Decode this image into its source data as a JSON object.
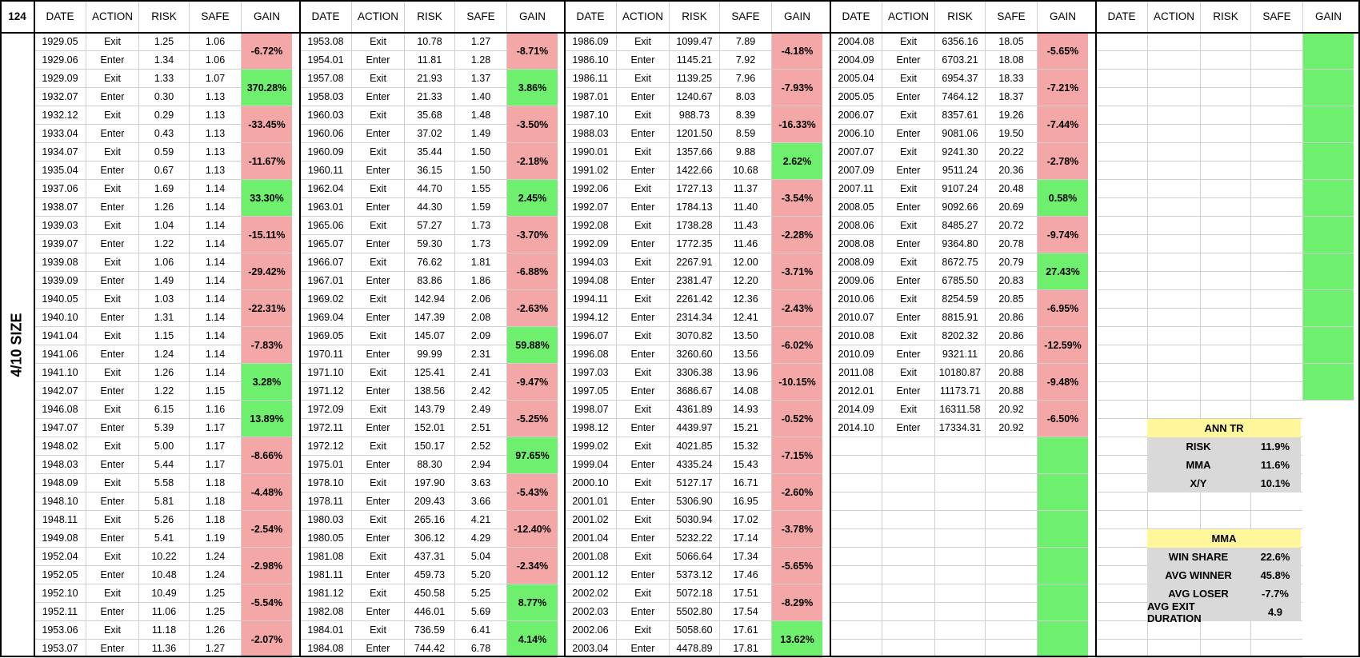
{
  "corner_label": "124",
  "side_label": "4/10 SIZE",
  "headers": [
    "DATE",
    "ACTION",
    "RISK",
    "SAFE",
    "GAIN"
  ],
  "blocks": [
    {
      "rows": [
        [
          "1929.05",
          "Exit",
          "1.25",
          "1.06"
        ],
        [
          "1929.06",
          "Enter",
          "1.34",
          "1.06"
        ],
        [
          "1929.09",
          "Exit",
          "1.33",
          "1.07"
        ],
        [
          "1932.07",
          "Enter",
          "0.30",
          "1.13"
        ],
        [
          "1932.12",
          "Exit",
          "0.29",
          "1.13"
        ],
        [
          "1933.04",
          "Enter",
          "0.43",
          "1.13"
        ],
        [
          "1934.07",
          "Exit",
          "0.59",
          "1.13"
        ],
        [
          "1935.04",
          "Enter",
          "0.67",
          "1.13"
        ],
        [
          "1937.06",
          "Exit",
          "1.69",
          "1.14"
        ],
        [
          "1938.07",
          "Enter",
          "1.26",
          "1.14"
        ],
        [
          "1939.03",
          "Exit",
          "1.04",
          "1.14"
        ],
        [
          "1939.07",
          "Enter",
          "1.22",
          "1.14"
        ],
        [
          "1939.08",
          "Exit",
          "1.06",
          "1.14"
        ],
        [
          "1939.09",
          "Enter",
          "1.49",
          "1.14"
        ],
        [
          "1940.05",
          "Exit",
          "1.03",
          "1.14"
        ],
        [
          "1940.10",
          "Enter",
          "1.31",
          "1.14"
        ],
        [
          "1941.04",
          "Exit",
          "1.15",
          "1.14"
        ],
        [
          "1941.06",
          "Enter",
          "1.24",
          "1.14"
        ],
        [
          "1941.10",
          "Exit",
          "1.26",
          "1.14"
        ],
        [
          "1942.07",
          "Enter",
          "1.22",
          "1.15"
        ],
        [
          "1946.08",
          "Exit",
          "6.15",
          "1.16"
        ],
        [
          "1947.07",
          "Enter",
          "5.39",
          "1.17"
        ],
        [
          "1948.02",
          "Exit",
          "5.00",
          "1.17"
        ],
        [
          "1948.03",
          "Enter",
          "5.44",
          "1.17"
        ],
        [
          "1948.09",
          "Exit",
          "5.58",
          "1.18"
        ],
        [
          "1948.10",
          "Enter",
          "5.81",
          "1.18"
        ],
        [
          "1948.11",
          "Exit",
          "5.26",
          "1.18"
        ],
        [
          "1949.08",
          "Enter",
          "5.41",
          "1.19"
        ],
        [
          "1952.04",
          "Exit",
          "10.22",
          "1.24"
        ],
        [
          "1952.05",
          "Enter",
          "10.48",
          "1.24"
        ],
        [
          "1952.10",
          "Exit",
          "10.49",
          "1.25"
        ],
        [
          "1952.11",
          "Enter",
          "11.06",
          "1.25"
        ],
        [
          "1953.06",
          "Exit",
          "11.18",
          "1.26"
        ],
        [
          "1953.07",
          "Enter",
          "11.36",
          "1.27"
        ]
      ],
      "gains": [
        {
          "v": "-6.72%",
          "c": "red"
        },
        {
          "v": "370.28%",
          "c": "grn"
        },
        {
          "v": "-33.45%",
          "c": "red"
        },
        {
          "v": "-11.67%",
          "c": "red"
        },
        {
          "v": "33.30%",
          "c": "grn"
        },
        {
          "v": "-15.11%",
          "c": "red"
        },
        {
          "v": "-29.42%",
          "c": "red"
        },
        {
          "v": "-22.31%",
          "c": "red"
        },
        {
          "v": "-7.83%",
          "c": "red"
        },
        {
          "v": "3.28%",
          "c": "grn"
        },
        {
          "v": "13.89%",
          "c": "grn"
        },
        {
          "v": "-8.66%",
          "c": "red"
        },
        {
          "v": "-4.48%",
          "c": "red"
        },
        {
          "v": "-2.54%",
          "c": "red"
        },
        {
          "v": "-2.98%",
          "c": "red"
        },
        {
          "v": "-5.54%",
          "c": "red"
        },
        {
          "v": "-2.07%",
          "c": "red"
        }
      ]
    },
    {
      "rows": [
        [
          "1953.08",
          "Exit",
          "10.78",
          "1.27"
        ],
        [
          "1954.01",
          "Enter",
          "11.81",
          "1.28"
        ],
        [
          "1957.08",
          "Exit",
          "21.93",
          "1.37"
        ],
        [
          "1958.03",
          "Enter",
          "21.33",
          "1.40"
        ],
        [
          "1960.03",
          "Exit",
          "35.68",
          "1.48"
        ],
        [
          "1960.06",
          "Enter",
          "37.02",
          "1.49"
        ],
        [
          "1960.09",
          "Exit",
          "35.44",
          "1.50"
        ],
        [
          "1960.11",
          "Enter",
          "36.15",
          "1.50"
        ],
        [
          "1962.04",
          "Exit",
          "44.70",
          "1.55"
        ],
        [
          "1963.01",
          "Enter",
          "44.30",
          "1.59"
        ],
        [
          "1965.06",
          "Exit",
          "57.27",
          "1.73"
        ],
        [
          "1965.07",
          "Enter",
          "59.30",
          "1.73"
        ],
        [
          "1966.07",
          "Exit",
          "76.62",
          "1.81"
        ],
        [
          "1967.01",
          "Enter",
          "83.86",
          "1.86"
        ],
        [
          "1969.02",
          "Exit",
          "142.94",
          "2.06"
        ],
        [
          "1969.04",
          "Enter",
          "147.39",
          "2.08"
        ],
        [
          "1969.05",
          "Exit",
          "145.07",
          "2.09"
        ],
        [
          "1970.11",
          "Enter",
          "99.99",
          "2.31"
        ],
        [
          "1971.10",
          "Exit",
          "125.41",
          "2.41"
        ],
        [
          "1971.12",
          "Enter",
          "138.56",
          "2.42"
        ],
        [
          "1972.09",
          "Exit",
          "143.79",
          "2.49"
        ],
        [
          "1972.11",
          "Enter",
          "152.01",
          "2.51"
        ],
        [
          "1972.12",
          "Exit",
          "150.17",
          "2.52"
        ],
        [
          "1975.01",
          "Enter",
          "88.30",
          "2.94"
        ],
        [
          "1978.10",
          "Exit",
          "197.90",
          "3.63"
        ],
        [
          "1978.11",
          "Enter",
          "209.43",
          "3.66"
        ],
        [
          "1980.03",
          "Exit",
          "265.16",
          "4.21"
        ],
        [
          "1980.05",
          "Enter",
          "306.12",
          "4.29"
        ],
        [
          "1981.08",
          "Exit",
          "437.31",
          "5.04"
        ],
        [
          "1981.11",
          "Enter",
          "459.73",
          "5.20"
        ],
        [
          "1981.12",
          "Exit",
          "450.58",
          "5.25"
        ],
        [
          "1982.08",
          "Enter",
          "446.01",
          "5.69"
        ],
        [
          "1984.01",
          "Exit",
          "736.59",
          "6.41"
        ],
        [
          "1984.08",
          "Enter",
          "744.42",
          "6.78"
        ]
      ],
      "gains": [
        {
          "v": "-8.71%",
          "c": "red"
        },
        {
          "v": "3.86%",
          "c": "grn"
        },
        {
          "v": "-3.50%",
          "c": "red"
        },
        {
          "v": "-2.18%",
          "c": "red"
        },
        {
          "v": "2.45%",
          "c": "grn"
        },
        {
          "v": "-3.70%",
          "c": "red"
        },
        {
          "v": "-6.88%",
          "c": "red"
        },
        {
          "v": "-2.63%",
          "c": "red"
        },
        {
          "v": "59.88%",
          "c": "grn"
        },
        {
          "v": "-9.47%",
          "c": "red"
        },
        {
          "v": "-5.25%",
          "c": "red"
        },
        {
          "v": "97.65%",
          "c": "grn"
        },
        {
          "v": "-5.43%",
          "c": "red"
        },
        {
          "v": "-12.40%",
          "c": "red"
        },
        {
          "v": "-2.34%",
          "c": "red"
        },
        {
          "v": "8.77%",
          "c": "grn"
        },
        {
          "v": "4.14%",
          "c": "grn"
        }
      ]
    },
    {
      "rows": [
        [
          "1986.09",
          "Exit",
          "1099.47",
          "7.89"
        ],
        [
          "1986.10",
          "Enter",
          "1145.21",
          "7.92"
        ],
        [
          "1986.11",
          "Exit",
          "1139.25",
          "7.96"
        ],
        [
          "1987.01",
          "Enter",
          "1240.67",
          "8.03"
        ],
        [
          "1987.10",
          "Exit",
          "988.73",
          "8.39"
        ],
        [
          "1988.03",
          "Enter",
          "1201.50",
          "8.59"
        ],
        [
          "1990.01",
          "Exit",
          "1357.66",
          "9.88"
        ],
        [
          "1991.02",
          "Enter",
          "1422.66",
          "10.68"
        ],
        [
          "1992.06",
          "Exit",
          "1727.13",
          "11.37"
        ],
        [
          "1992.07",
          "Enter",
          "1784.13",
          "11.40"
        ],
        [
          "1992.08",
          "Exit",
          "1738.28",
          "11.43"
        ],
        [
          "1992.09",
          "Enter",
          "1772.35",
          "11.46"
        ],
        [
          "1994.03",
          "Exit",
          "2267.91",
          "12.00"
        ],
        [
          "1994.08",
          "Enter",
          "2381.47",
          "12.20"
        ],
        [
          "1994.11",
          "Exit",
          "2261.42",
          "12.36"
        ],
        [
          "1994.12",
          "Enter",
          "2314.34",
          "12.41"
        ],
        [
          "1996.07",
          "Exit",
          "3070.82",
          "13.50"
        ],
        [
          "1996.08",
          "Enter",
          "3260.60",
          "13.56"
        ],
        [
          "1997.03",
          "Exit",
          "3306.38",
          "13.96"
        ],
        [
          "1997.05",
          "Enter",
          "3686.67",
          "14.08"
        ],
        [
          "1998.07",
          "Exit",
          "4361.89",
          "14.93"
        ],
        [
          "1998.12",
          "Enter",
          "4439.97",
          "15.21"
        ],
        [
          "1999.02",
          "Exit",
          "4021.85",
          "15.32"
        ],
        [
          "1999.04",
          "Enter",
          "4335.24",
          "15.43"
        ],
        [
          "2000.10",
          "Exit",
          "5127.17",
          "16.71"
        ],
        [
          "2001.01",
          "Enter",
          "5306.90",
          "16.95"
        ],
        [
          "2001.02",
          "Exit",
          "5030.94",
          "17.02"
        ],
        [
          "2001.04",
          "Enter",
          "5232.22",
          "17.14"
        ],
        [
          "2001.08",
          "Exit",
          "5066.64",
          "17.34"
        ],
        [
          "2001.12",
          "Enter",
          "5373.12",
          "17.46"
        ],
        [
          "2002.02",
          "Exit",
          "5072.18",
          "17.51"
        ],
        [
          "2002.03",
          "Enter",
          "5502.80",
          "17.54"
        ],
        [
          "2002.06",
          "Exit",
          "5058.60",
          "17.61"
        ],
        [
          "2003.04",
          "Enter",
          "4478.89",
          "17.81"
        ]
      ],
      "gains": [
        {
          "v": "-4.18%",
          "c": "red"
        },
        {
          "v": "-7.93%",
          "c": "red"
        },
        {
          "v": "-16.33%",
          "c": "red"
        },
        {
          "v": "2.62%",
          "c": "grn"
        },
        {
          "v": "-3.54%",
          "c": "red"
        },
        {
          "v": "-2.28%",
          "c": "red"
        },
        {
          "v": "-3.71%",
          "c": "red"
        },
        {
          "v": "-2.43%",
          "c": "red"
        },
        {
          "v": "-6.02%",
          "c": "red"
        },
        {
          "v": "-10.15%",
          "c": "red"
        },
        {
          "v": "-0.52%",
          "c": "red"
        },
        {
          "v": "-7.15%",
          "c": "red"
        },
        {
          "v": "-2.60%",
          "c": "red"
        },
        {
          "v": "-3.78%",
          "c": "red"
        },
        {
          "v": "-5.65%",
          "c": "red"
        },
        {
          "v": "-8.29%",
          "c": "red"
        },
        {
          "v": "13.62%",
          "c": "grn"
        }
      ]
    },
    {
      "rows": [
        [
          "2004.08",
          "Exit",
          "6356.16",
          "18.05"
        ],
        [
          "2004.09",
          "Enter",
          "6703.21",
          "18.08"
        ],
        [
          "2005.04",
          "Exit",
          "6954.37",
          "18.33"
        ],
        [
          "2005.05",
          "Enter",
          "7464.12",
          "18.37"
        ],
        [
          "2006.07",
          "Exit",
          "8357.61",
          "19.26"
        ],
        [
          "2006.10",
          "Enter",
          "9081.06",
          "19.50"
        ],
        [
          "2007.07",
          "Exit",
          "9241.30",
          "20.22"
        ],
        [
          "2007.09",
          "Enter",
          "9511.24",
          "20.36"
        ],
        [
          "2007.11",
          "Exit",
          "9107.24",
          "20.48"
        ],
        [
          "2008.05",
          "Enter",
          "9092.66",
          "20.69"
        ],
        [
          "2008.06",
          "Exit",
          "8485.27",
          "20.72"
        ],
        [
          "2008.08",
          "Enter",
          "9364.80",
          "20.78"
        ],
        [
          "2008.09",
          "Exit",
          "8672.75",
          "20.79"
        ],
        [
          "2009.06",
          "Enter",
          "6785.50",
          "20.83"
        ],
        [
          "2010.06",
          "Exit",
          "8254.59",
          "20.85"
        ],
        [
          "2010.07",
          "Enter",
          "8815.91",
          "20.86"
        ],
        [
          "2010.08",
          "Exit",
          "8202.32",
          "20.86"
        ],
        [
          "2010.09",
          "Enter",
          "9321.11",
          "20.86"
        ],
        [
          "2011.08",
          "Exit",
          "10180.87",
          "20.88"
        ],
        [
          "2012.01",
          "Enter",
          "11173.71",
          "20.88"
        ],
        [
          "2014.09",
          "Exit",
          "16311.58",
          "20.92"
        ],
        [
          "2014.10",
          "Enter",
          "17334.31",
          "20.92"
        ]
      ],
      "gains": [
        {
          "v": "-5.65%",
          "c": "red"
        },
        {
          "v": "-7.21%",
          "c": "red"
        },
        {
          "v": "-7.44%",
          "c": "red"
        },
        {
          "v": "-2.78%",
          "c": "red"
        },
        {
          "v": "0.58%",
          "c": "grn"
        },
        {
          "v": "-9.74%",
          "c": "red"
        },
        {
          "v": "27.43%",
          "c": "grn"
        },
        {
          "v": "-6.95%",
          "c": "red"
        },
        {
          "v": "-12.59%",
          "c": "red"
        },
        {
          "v": "-9.48%",
          "c": "red"
        },
        {
          "v": "-6.50%",
          "c": "red"
        },
        {
          "v": "",
          "c": "grn"
        },
        {
          "v": "",
          "c": "grn"
        },
        {
          "v": "",
          "c": "grn"
        },
        {
          "v": "",
          "c": "grn"
        },
        {
          "v": "",
          "c": "grn"
        },
        {
          "v": "",
          "c": "grn"
        }
      ]
    },
    {
      "rows": [],
      "gains": [
        {
          "v": "",
          "c": "grn"
        },
        {
          "v": "",
          "c": "grn"
        },
        {
          "v": "",
          "c": "grn"
        },
        {
          "v": "",
          "c": "grn"
        },
        {
          "v": "",
          "c": "grn"
        },
        {
          "v": "",
          "c": "grn"
        },
        {
          "v": "",
          "c": "grn"
        },
        {
          "v": "",
          "c": "grn"
        },
        {
          "v": "",
          "c": "grn"
        },
        {
          "v": "",
          "c": "grn"
        }
      ]
    }
  ],
  "summary": {
    "ann_tr": {
      "title": "ANN TR",
      "rows": [
        {
          "label": "RISK",
          "value": "11.9%"
        },
        {
          "label": "MMA",
          "value": "11.6%"
        },
        {
          "label": "X/Y",
          "value": "10.1%"
        }
      ]
    },
    "mma": {
      "title": "MMA",
      "rows": [
        {
          "label": "WIN SHARE",
          "value": "22.6%"
        },
        {
          "label": "AVG WINNER",
          "value": "45.8%"
        },
        {
          "label": "AVG LOSER",
          "value": "-7.7%"
        },
        {
          "label": "AVG EXIT DURATION",
          "value": "4.9"
        }
      ]
    },
    "colors": {
      "title_bg": "#fff79a",
      "row_bg": "#d9d9d9",
      "loss": "#f4a7a7",
      "win": "#6ef06e"
    }
  }
}
